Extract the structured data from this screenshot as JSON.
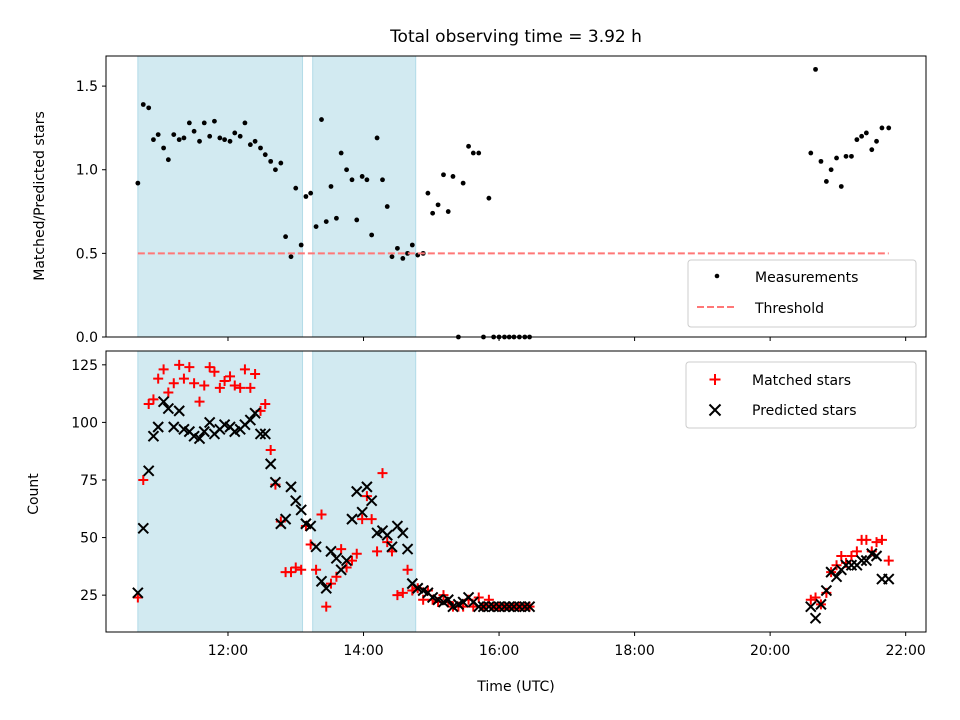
{
  "chart_data": [
    {
      "type": "scatter",
      "title": "Total observing time = 3.92 h",
      "xlabel": "",
      "ylabel": "Matched/Predicted stars",
      "xlim": [
        10.2,
        22.3
      ],
      "ylim": [
        0,
        1.68
      ],
      "yticks": [
        0,
        0.5,
        1.0,
        1.5
      ],
      "ytick_labels": [
        "0.0",
        "0.5",
        "1.0",
        "1.5"
      ],
      "grid": false,
      "legend": "lower-right",
      "shaded_intervals": [
        [
          10.67,
          13.1
        ],
        [
          13.25,
          14.77
        ]
      ],
      "shade_color": "#add8e6",
      "series": [
        {
          "name": "Measurements",
          "kind": "scatter",
          "marker": "dot",
          "color": "#000000",
          "x": [
            10.67,
            10.75,
            10.83,
            10.9,
            10.97,
            11.05,
            11.12,
            11.2,
            11.28,
            11.35,
            11.43,
            11.5,
            11.58,
            11.65,
            11.73,
            11.8,
            11.88,
            11.95,
            12.03,
            12.1,
            12.18,
            12.25,
            12.33,
            12.4,
            12.48,
            12.55,
            12.63,
            12.7,
            12.78,
            12.85,
            12.93,
            13.0,
            13.08,
            13.15,
            13.22,
            13.3,
            13.38,
            13.45,
            13.52,
            13.6,
            13.67,
            13.75,
            13.83,
            13.9,
            13.98,
            14.05,
            14.12,
            14.2,
            14.28,
            14.35,
            14.42,
            14.5,
            14.58,
            14.65,
            14.72,
            14.8,
            14.88,
            14.95,
            15.02,
            15.1,
            15.18,
            15.25,
            15.32,
            15.4,
            15.47,
            15.55,
            15.62,
            15.7,
            15.77,
            15.85,
            15.92,
            16.0,
            16.08,
            16.15,
            16.22,
            16.3,
            16.38,
            16.45,
            20.6,
            20.67,
            20.75,
            20.83,
            20.9,
            20.98,
            21.05,
            21.12,
            21.2,
            21.28,
            21.35,
            21.42,
            21.5,
            21.57,
            21.65,
            21.75
          ],
          "y": [
            0.92,
            1.39,
            1.37,
            1.18,
            1.21,
            1.13,
            1.06,
            1.21,
            1.18,
            1.19,
            1.28,
            1.23,
            1.17,
            1.28,
            1.2,
            1.29,
            1.19,
            1.18,
            1.17,
            1.22,
            1.2,
            1.28,
            1.15,
            1.17,
            1.13,
            1.09,
            1.05,
            1.0,
            1.04,
            0.6,
            0.48,
            0.89,
            0.55,
            0.84,
            0.86,
            0.66,
            1.3,
            0.69,
            0.9,
            0.71,
            1.1,
            1.0,
            0.94,
            0.7,
            0.96,
            0.94,
            0.61,
            1.19,
            0.94,
            0.78,
            0.48,
            0.53,
            0.47,
            0.5,
            0.55,
            0.49,
            0.5,
            0.86,
            0.74,
            0.79,
            0.97,
            0.75,
            0.96,
            0.0,
            0.92,
            1.14,
            1.1,
            1.1,
            0.0,
            0.83,
            0.0,
            0.0,
            0.0,
            0.0,
            0.0,
            0.0,
            0.0,
            0.0,
            1.1,
            1.6,
            1.05,
            0.93,
            1.0,
            1.07,
            0.9,
            1.08,
            1.08,
            1.18,
            1.2,
            1.22,
            1.12,
            1.17,
            1.25,
            1.25
          ]
        },
        {
          "name": "Threshold",
          "kind": "line",
          "style": "dashed",
          "color": "#ff7777",
          "x": [
            10.67,
            21.75
          ],
          "y": [
            0.5,
            0.5
          ]
        }
      ]
    },
    {
      "type": "scatter",
      "title": "",
      "xlabel": "Time (UTC)",
      "ylabel": "Count",
      "xlim": [
        10.2,
        22.3
      ],
      "ylim": [
        9,
        131
      ],
      "xticks": [
        12,
        14,
        16,
        18,
        20,
        22
      ],
      "xtick_labels": [
        "12:00",
        "14:00",
        "16:00",
        "18:00",
        "20:00",
        "22:00"
      ],
      "yticks": [
        25,
        50,
        75,
        100,
        125
      ],
      "ytick_labels": [
        "25",
        "50",
        "75",
        "100",
        "125"
      ],
      "grid": false,
      "legend": "top-right",
      "shaded_intervals": [
        [
          10.67,
          13.1
        ],
        [
          13.25,
          14.77
        ]
      ],
      "shade_color": "#add8e6",
      "series": [
        {
          "name": "Matched stars",
          "kind": "scatter",
          "marker": "plus",
          "color": "#ff0000",
          "x": [
            10.67,
            10.75,
            10.83,
            10.9,
            10.97,
            11.05,
            11.12,
            11.2,
            11.28,
            11.35,
            11.43,
            11.5,
            11.58,
            11.65,
            11.73,
            11.8,
            11.88,
            11.95,
            12.03,
            12.1,
            12.18,
            12.25,
            12.33,
            12.4,
            12.48,
            12.55,
            12.63,
            12.7,
            12.78,
            12.85,
            12.93,
            13.0,
            13.08,
            13.15,
            13.22,
            13.3,
            13.38,
            13.45,
            13.52,
            13.6,
            13.67,
            13.75,
            13.83,
            13.9,
            13.98,
            14.05,
            14.12,
            14.2,
            14.28,
            14.35,
            14.42,
            14.5,
            14.58,
            14.65,
            14.72,
            14.8,
            14.88,
            14.95,
            15.02,
            15.1,
            15.18,
            15.25,
            15.32,
            15.4,
            15.47,
            15.55,
            15.62,
            15.7,
            15.77,
            15.85,
            15.92,
            16.0,
            16.08,
            16.15,
            16.22,
            16.3,
            16.38,
            16.45,
            20.6,
            20.67,
            20.75,
            20.83,
            20.9,
            20.98,
            21.05,
            21.12,
            21.2,
            21.28,
            21.35,
            21.42,
            21.5,
            21.57,
            21.65,
            21.75
          ],
          "y": [
            24,
            75,
            108,
            110,
            119,
            123,
            113,
            117,
            125,
            119,
            124,
            117,
            109,
            116,
            124,
            122,
            115,
            118,
            120,
            116,
            115,
            123,
            115,
            121,
            105,
            108,
            88,
            73,
            57,
            35,
            35,
            37,
            36,
            55,
            47,
            36,
            60,
            20,
            30,
            33,
            45,
            37,
            40,
            43,
            58,
            68,
            58,
            44,
            78,
            48,
            44,
            25,
            26,
            36,
            27,
            28,
            23,
            27,
            23,
            22,
            25,
            22,
            20,
            20,
            20,
            23,
            20,
            24,
            20,
            23,
            20,
            20,
            20,
            20,
            20,
            20,
            20,
            20,
            23,
            24,
            21,
            26,
            35,
            38,
            42,
            39,
            42,
            44,
            49,
            49,
            44,
            48,
            49,
            40
          ]
        },
        {
          "name": "Predicted stars",
          "kind": "scatter",
          "marker": "x",
          "color": "#000000",
          "x": [
            10.67,
            10.75,
            10.83,
            10.9,
            10.97,
            11.05,
            11.12,
            11.2,
            11.28,
            11.35,
            11.43,
            11.5,
            11.58,
            11.65,
            11.73,
            11.8,
            11.88,
            11.95,
            12.03,
            12.1,
            12.18,
            12.25,
            12.33,
            12.4,
            12.48,
            12.55,
            12.63,
            12.7,
            12.78,
            12.85,
            12.93,
            13.0,
            13.08,
            13.15,
            13.22,
            13.3,
            13.38,
            13.45,
            13.52,
            13.6,
            13.67,
            13.75,
            13.83,
            13.9,
            13.98,
            14.05,
            14.12,
            14.2,
            14.28,
            14.35,
            14.42,
            14.5,
            14.58,
            14.65,
            14.72,
            14.8,
            14.88,
            14.95,
            15.02,
            15.1,
            15.18,
            15.25,
            15.32,
            15.4,
            15.47,
            15.55,
            15.62,
            15.7,
            15.77,
            15.85,
            15.92,
            16.0,
            16.08,
            16.15,
            16.22,
            16.3,
            16.38,
            16.45,
            20.6,
            20.67,
            20.75,
            20.83,
            20.9,
            20.98,
            21.05,
            21.12,
            21.2,
            21.28,
            21.35,
            21.42,
            21.5,
            21.57,
            21.65,
            21.75
          ],
          "y": [
            26,
            54,
            79,
            94,
            98,
            109,
            106,
            98,
            105,
            97,
            96,
            94,
            93,
            96,
            100,
            95,
            97,
            99,
            98,
            96,
            97,
            99,
            101,
            104,
            95,
            95,
            82,
            74,
            56,
            58,
            72,
            66,
            62,
            56,
            55,
            46,
            31,
            28,
            44,
            41,
            36,
            40,
            58,
            70,
            61,
            72,
            66,
            52,
            53,
            51,
            46,
            55,
            52,
            45,
            30,
            28,
            27,
            26,
            24,
            23,
            22,
            23,
            20,
            21,
            22,
            24,
            22,
            20,
            20,
            20,
            20,
            20,
            20,
            20,
            20,
            20,
            20,
            20,
            20,
            15,
            21,
            27,
            35,
            33,
            36,
            38,
            38,
            38,
            40,
            40,
            43,
            42,
            32,
            32
          ]
        }
      ]
    }
  ]
}
